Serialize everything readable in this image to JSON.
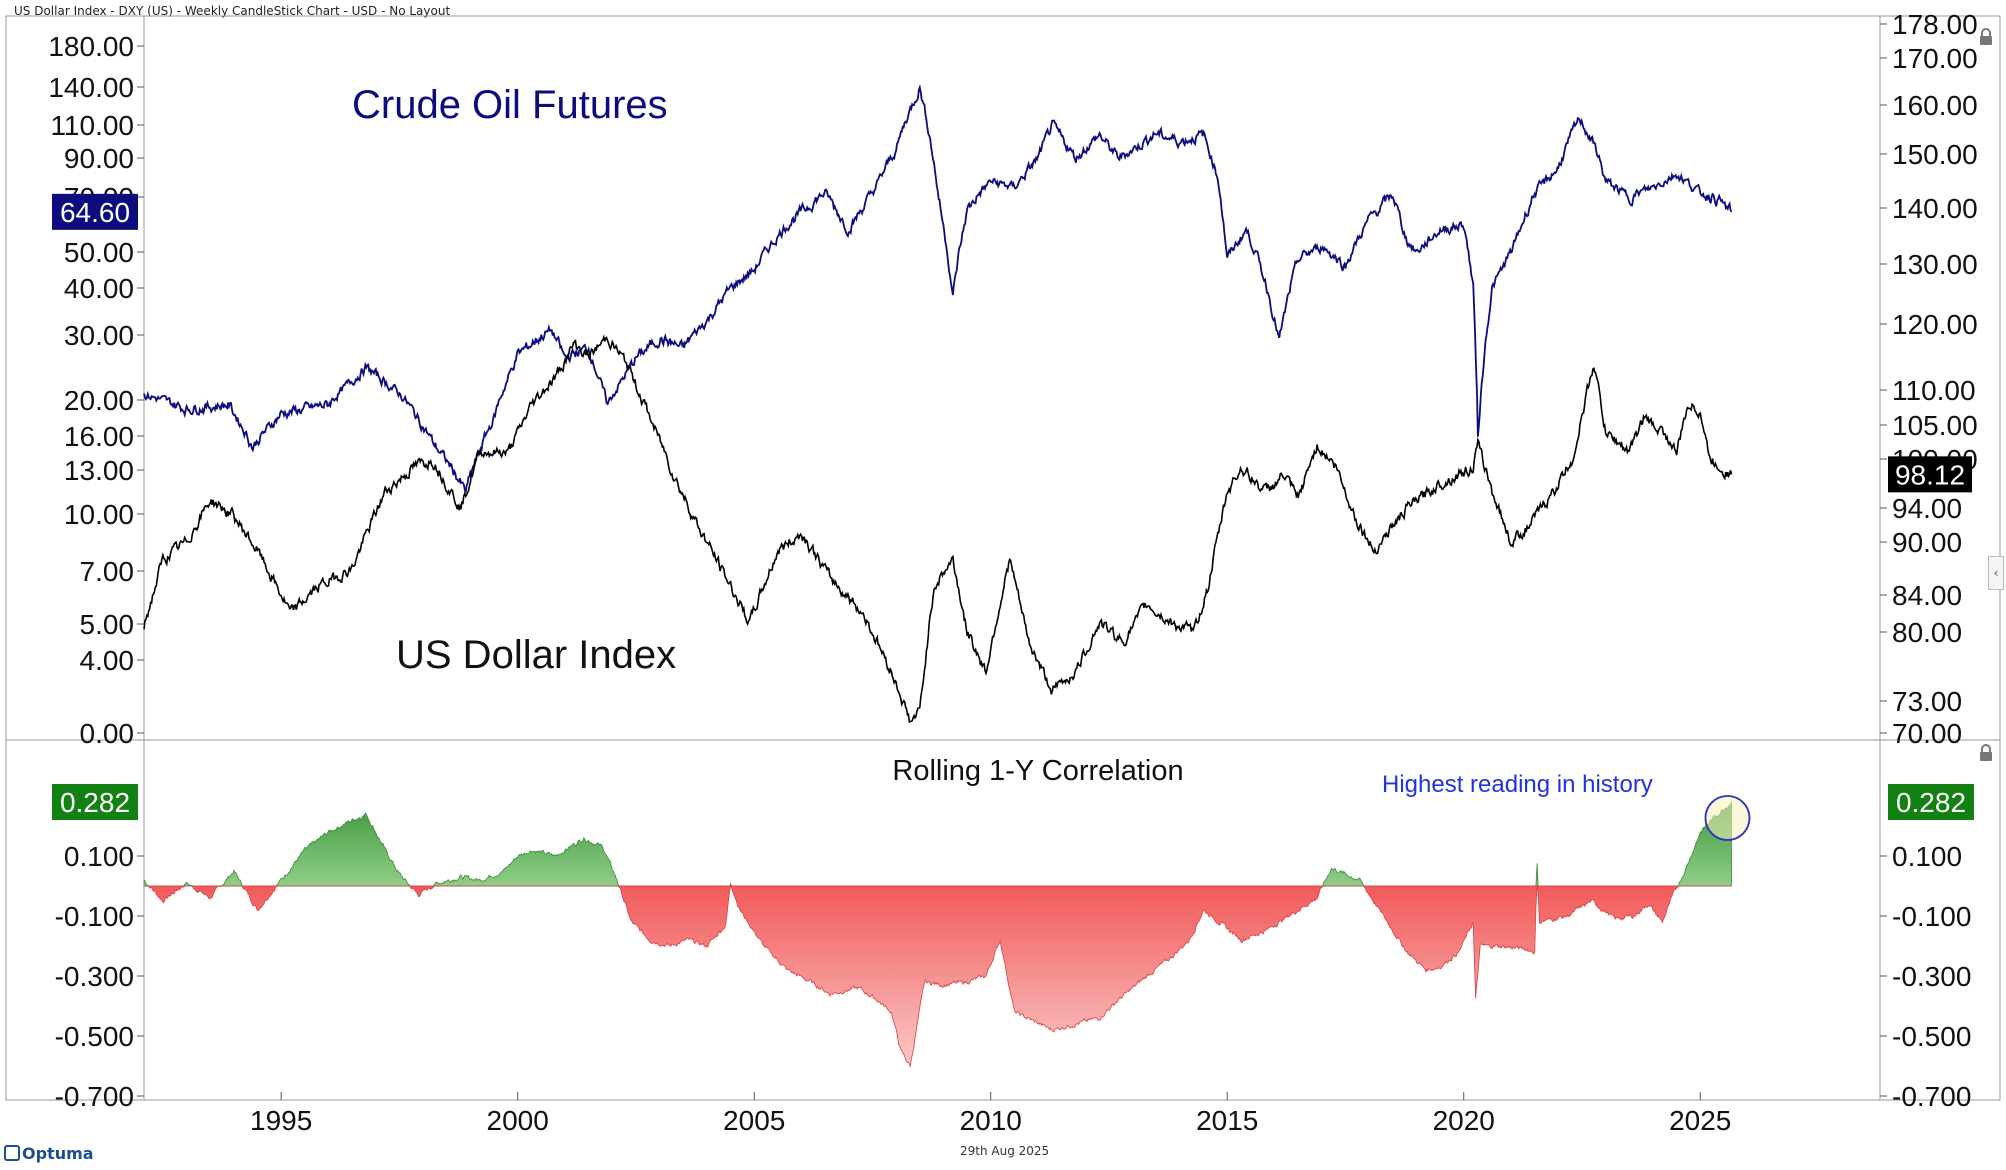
{
  "window": {
    "title": "US Dollar Index - DXY (US) - Weekly CandleStick Chart - USD - No Layout",
    "footer_date": "29th Aug 2025",
    "logo": "Optuma"
  },
  "icons": {
    "lock": "lock-icon",
    "collapse": "chevron-left-icon"
  },
  "colors": {
    "oil": "#0c0c7e",
    "dxy": "#000000",
    "positive_fill": "#5aaa4e",
    "negative_fill": "#f06666",
    "last_green": "#128012",
    "highlight_circle": "#2a35c0"
  },
  "chart_data": [
    {
      "type": "line",
      "title": "",
      "annotations": [
        "Crude Oil Futures",
        "US Dollar Index"
      ],
      "x_axis": {
        "ticks": [
          "1995",
          "2000",
          "2005",
          "2010",
          "2015",
          "2020",
          "2025"
        ],
        "range": [
          1992.1,
          2028.8
        ]
      },
      "left_axis": {
        "scale": "log",
        "ticks": [
          "180.00",
          "140.00",
          "110.00",
          "90.00",
          "70.00",
          "50.00",
          "40.00",
          "30.00",
          "20.00",
          "16.00",
          "13.00",
          "10.00",
          "7.00",
          "5.00",
          "4.00",
          "0.00"
        ]
      },
      "right_axis": {
        "scale": "log",
        "ticks": [
          "178.00",
          "170.00",
          "160.00",
          "150.00",
          "140.00",
          "130.00",
          "120.00",
          "110.00",
          "105.00",
          "100.00",
          "94.00",
          "90.00",
          "84.00",
          "80.00",
          "73.00",
          "70.00"
        ]
      },
      "series": [
        {
          "name": "Crude Oil Futures",
          "axis": "left",
          "last_label": "64.60",
          "x": [
            1992.1,
            1993.0,
            1993.9,
            1994.4,
            1995.0,
            1996.0,
            1996.8,
            1997.5,
            1998.2,
            1998.9,
            1999.5,
            2000.0,
            2000.7,
            2001.0,
            2001.5,
            2001.9,
            2002.5,
            2003.0,
            2003.5,
            2004.0,
            2004.5,
            2005.0,
            2005.7,
            2006.5,
            2007.0,
            2007.5,
            2008.0,
            2008.5,
            2008.9,
            2009.2,
            2009.5,
            2010.0,
            2010.5,
            2011.0,
            2011.3,
            2011.8,
            2012.3,
            2012.7,
            2013.0,
            2013.5,
            2014.0,
            2014.5,
            2014.8,
            2015.0,
            2015.4,
            2015.8,
            2016.1,
            2016.5,
            2017.0,
            2017.5,
            2018.0,
            2018.5,
            2018.8,
            2019.0,
            2019.5,
            2020.0,
            2020.2,
            2020.3,
            2020.6,
            2021.0,
            2021.5,
            2022.0,
            2022.45,
            2022.8,
            2023.0,
            2023.5,
            2024.0,
            2024.5,
            2025.0,
            2025.3,
            2025.66
          ],
          "values": [
            20.8,
            19.0,
            19.5,
            15.0,
            18.5,
            19.5,
            25.0,
            21.0,
            15.5,
            11.5,
            18.0,
            27.0,
            31.0,
            26.5,
            28.0,
            19.5,
            26.5,
            29.5,
            28.0,
            33.0,
            40.0,
            45.0,
            60.0,
            72.0,
            58.0,
            72.0,
            95.0,
            140.0,
            70.0,
            38.0,
            65.0,
            78.0,
            75.0,
            90.0,
            110.0,
            90.0,
            104.0,
            90.0,
            95.0,
            105.0,
            100.0,
            104.0,
            80.0,
            48.0,
            58.0,
            42.0,
            29.0,
            48.0,
            52.0,
            46.0,
            62.0,
            71.0,
            54.0,
            50.0,
            58.0,
            60.0,
            40.0,
            16.0,
            40.0,
            50.0,
            72.0,
            85.0,
            115.0,
            95.0,
            78.0,
            70.0,
            75.0,
            82.0,
            72.0,
            70.0,
            64.6
          ]
        },
        {
          "name": "US Dollar Index",
          "axis": "right",
          "last_label": "98.12",
          "x": [
            1992.1,
            1992.5,
            1993.0,
            1993.5,
            1994.0,
            1994.5,
            1995.2,
            1995.8,
            1996.5,
            1997.2,
            1997.8,
            1998.2,
            1998.8,
            1999.2,
            1999.8,
            2000.3,
            2000.8,
            2001.2,
            2001.5,
            2001.9,
            2002.3,
            2002.8,
            2003.3,
            2003.8,
            2004.2,
            2004.9,
            2005.5,
            2006.0,
            2006.6,
            2007.3,
            2007.9,
            2008.3,
            2008.5,
            2008.8,
            2009.2,
            2009.5,
            2009.9,
            2010.4,
            2010.8,
            2011.3,
            2011.8,
            2012.3,
            2012.8,
            2013.3,
            2013.8,
            2014.3,
            2014.6,
            2015.0,
            2015.3,
            2015.8,
            2016.2,
            2016.5,
            2016.9,
            2017.3,
            2017.7,
            2018.1,
            2018.8,
            2019.5,
            2020.2,
            2020.3,
            2020.6,
            2021.0,
            2021.4,
            2021.9,
            2022.3,
            2022.75,
            2023.0,
            2023.5,
            2023.8,
            2024.2,
            2024.5,
            2024.75,
            2025.0,
            2025.2,
            2025.66
          ],
          "values": [
            80.5,
            88.0,
            90.0,
            95.0,
            93.0,
            89.0,
            82.0,
            85.0,
            87.0,
            96.0,
            99.0,
            100.0,
            94.0,
            101.0,
            101.0,
            108.0,
            112.0,
            117.0,
            115.0,
            118.0,
            114.0,
            106.0,
            98.0,
            92.0,
            88.0,
            81.0,
            89.0,
            91.0,
            86.0,
            82.0,
            76.0,
            71.0,
            72.0,
            85.0,
            88.0,
            80.0,
            76.0,
            88.0,
            79.0,
            74.0,
            76.0,
            81.0,
            79.0,
            83.0,
            81.0,
            80.0,
            85.0,
            96.0,
            99.0,
            96.0,
            98.0,
            95.0,
            102.0,
            99.0,
            93.0,
            89.0,
            94.0,
            97.0,
            99.0,
            102.0,
            96.0,
            90.0,
            92.0,
            96.0,
            100.0,
            114.0,
            104.0,
            101.0,
            106.0,
            104.0,
            101.0,
            108.0,
            107.0,
            100.0,
            98.12
          ]
        }
      ]
    },
    {
      "type": "area",
      "title": "Rolling 1-Y Correlation",
      "annotation": "Highest reading in history",
      "y_axis": {
        "ticks": [
          "0.282",
          "0.100",
          "-0.100",
          "-0.300",
          "-0.500",
          "-0.700"
        ],
        "range": [
          -0.7,
          0.38
        ]
      },
      "last_label": "0.282",
      "x": [
        1992.1,
        1992.5,
        1993.0,
        1993.5,
        1994.0,
        1994.5,
        1995.0,
        1995.5,
        1996.0,
        1996.5,
        1996.8,
        1997.2,
        1997.5,
        1997.9,
        1998.3,
        1998.8,
        1999.2,
        1999.7,
        2000.0,
        2000.3,
        2000.8,
        2001.1,
        2001.4,
        2001.8,
        2002.1,
        2002.4,
        2002.8,
        2003.2,
        2003.6,
        2004.0,
        2004.4,
        2004.5,
        2004.7,
        2005.2,
        2005.7,
        2006.2,
        2006.6,
        2007.2,
        2007.6,
        2007.9,
        2008.1,
        2008.3,
        2008.6,
        2009.0,
        2009.5,
        2009.9,
        2010.2,
        2010.5,
        2010.9,
        2011.3,
        2011.8,
        2012.3,
        2012.7,
        2013.3,
        2013.8,
        2014.2,
        2014.5,
        2014.9,
        2015.3,
        2015.8,
        2016.3,
        2016.6,
        2016.9,
        2017.2,
        2017.5,
        2017.8,
        2018.3,
        2018.8,
        2019.2,
        2019.5,
        2019.9,
        2020.2,
        2020.25,
        2020.35,
        2020.7,
        2021.3,
        2021.5,
        2021.55,
        2021.6,
        2022.2,
        2022.7,
        2023.2,
        2023.6,
        2023.9,
        2024.2,
        2024.4,
        2024.7,
        2025.0,
        2025.3,
        2025.66
      ],
      "values": [
        0.02,
        -0.05,
        0.01,
        -0.04,
        0.05,
        -0.08,
        0.02,
        0.12,
        0.18,
        0.22,
        0.24,
        0.12,
        0.04,
        -0.03,
        0.01,
        0.03,
        0.02,
        0.05,
        0.1,
        0.12,
        0.1,
        0.13,
        0.16,
        0.13,
        0.02,
        -0.12,
        -0.18,
        -0.2,
        -0.18,
        -0.2,
        -0.13,
        0.01,
        -0.08,
        -0.2,
        -0.28,
        -0.32,
        -0.36,
        -0.34,
        -0.38,
        -0.42,
        -0.55,
        -0.6,
        -0.32,
        -0.33,
        -0.32,
        -0.3,
        -0.18,
        -0.42,
        -0.45,
        -0.48,
        -0.46,
        -0.44,
        -0.38,
        -0.3,
        -0.24,
        -0.18,
        -0.08,
        -0.13,
        -0.18,
        -0.15,
        -0.1,
        -0.07,
        -0.04,
        0.06,
        0.04,
        0.02,
        -0.1,
        -0.22,
        -0.28,
        -0.27,
        -0.22,
        -0.12,
        -0.38,
        -0.2,
        -0.2,
        -0.21,
        -0.22,
        0.07,
        -0.12,
        -0.1,
        -0.05,
        -0.11,
        -0.1,
        -0.06,
        -0.12,
        -0.04,
        0.06,
        0.18,
        0.23,
        0.28
      ]
    }
  ]
}
